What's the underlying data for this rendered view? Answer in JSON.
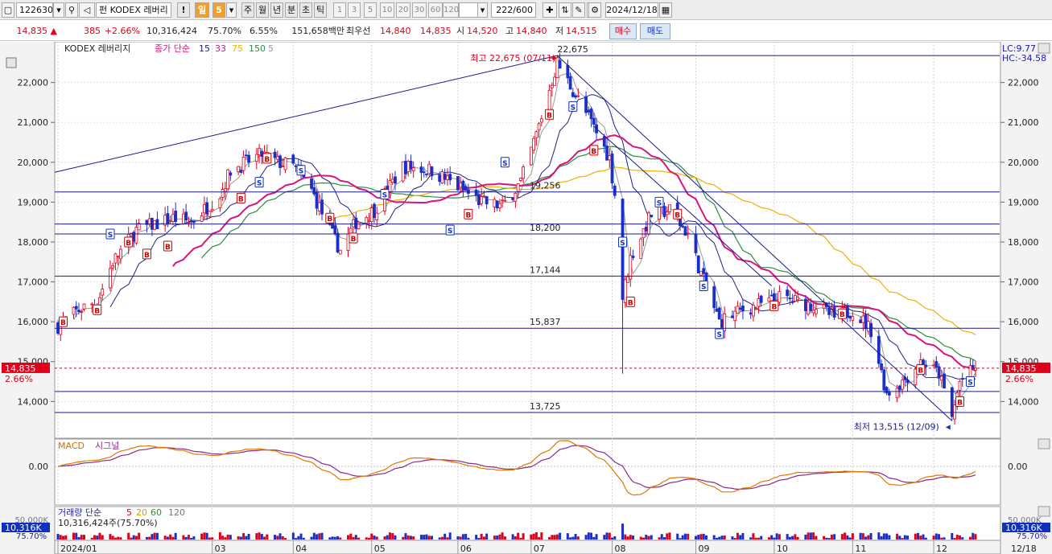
{
  "toolbar": {
    "code": "122630",
    "fund_prefix": "펀",
    "name": "KODEX 레버리",
    "exclaim": "!",
    "period_active": "일",
    "period_num": "5",
    "periods": [
      "주",
      "월",
      "년",
      "분",
      "초",
      "틱"
    ],
    "min_steps": [
      "1",
      "3",
      "5",
      "10",
      "20",
      "30",
      "60",
      "120"
    ],
    "count_display": "222/600",
    "date": "2024/12/18"
  },
  "pricebar": {
    "price": "14,835",
    "arrow": "▲",
    "change": "385",
    "change_pct": "+2.66%",
    "volume": "10,316,424",
    "volume_ratio": "75.70%",
    "turnover": "6.55%",
    "trade_value": "151,658백만",
    "best_label": "최우선",
    "best_ask": "14,840",
    "best_bid": "14,835",
    "open_label": "시",
    "open": "14,520",
    "high_label": "고",
    "high": "14,840",
    "low_label": "저",
    "low": "14,515",
    "buy_button": "매수",
    "sell_button": "매도"
  },
  "price_panel": {
    "title": "KODEX 레버리지",
    "ma_prefix": "종가 단순",
    "ma_legend": [
      "15",
      "33",
      "75",
      "150",
      "5"
    ],
    "lc": "LC:9.77",
    "hc": "HC:-34.58",
    "current_price": "14,835",
    "current_pct": "2.66%",
    "high_note": "최고 22,675 (07/11)",
    "low_note": "최저 13,515 (12/09)",
    "y_ticks": [
      "22,000",
      "21,000",
      "20,000",
      "19,000",
      "18,000",
      "17,000",
      "16,000",
      "15,000",
      "14,000"
    ]
  },
  "macd_panel": {
    "label": "MACD",
    "signal_label": "시그널",
    "zero_label": "0.00"
  },
  "volume_panel": {
    "label": "거래량 단순",
    "ma_legend": [
      "5",
      "20",
      "60",
      "120"
    ],
    "info": "10,316,424주(75.70%)",
    "right_tick": "50,000K",
    "badge": "10,316K",
    "badge_pct": "75.70%"
  },
  "x_axis": {
    "labels": [
      "2024/01",
      "03",
      "04",
      "05",
      "06",
      "07",
      "08",
      "09",
      "10",
      "11",
      "12"
    ],
    "right_label": "12/18"
  },
  "colors": {
    "up": "#e0001a",
    "down": "#1c2fc9",
    "ma15": "#222288",
    "ma33": "#d8147e",
    "ma75": "#f0b000",
    "ma150": "#2e8b3e",
    "ma5": "#999999",
    "hline": "#1a1a8c"
  },
  "chart_data": {
    "type": "candlestick",
    "horizontal_levels": [
      22675,
      19256,
      18200,
      17144,
      15837,
      13725
    ],
    "ohlc_knots": [
      {
        "date": "2024-01-02",
        "close": 15900
      },
      {
        "date": "2024-01-10",
        "close": 16300
      },
      {
        "date": "2024-01-17",
        "close": 16500
      },
      {
        "date": "2024-01-23",
        "close": 17500
      },
      {
        "date": "2024-02-01",
        "close": 18300
      },
      {
        "date": "2024-02-15",
        "close": 18600
      },
      {
        "date": "2024-02-22",
        "close": 18500
      },
      {
        "date": "2024-03-04",
        "close": 19200
      },
      {
        "date": "2024-03-08",
        "close": 19800
      },
      {
        "date": "2024-03-20",
        "close": 20200
      },
      {
        "date": "2024-03-26",
        "close": 20000
      },
      {
        "date": "2024-04-01",
        "close": 19900
      },
      {
        "date": "2024-04-08",
        "close": 19300
      },
      {
        "date": "2024-04-15",
        "close": 18300
      },
      {
        "date": "2024-04-19",
        "close": 17800
      },
      {
        "date": "2024-04-25",
        "close": 18500
      },
      {
        "date": "2024-05-02",
        "close": 18800
      },
      {
        "date": "2024-05-13",
        "close": 19900
      },
      {
        "date": "2024-05-24",
        "close": 19800
      },
      {
        "date": "2024-06-05",
        "close": 19300
      },
      {
        "date": "2024-06-12",
        "close": 19000
      },
      {
        "date": "2024-06-20",
        "close": 18900
      },
      {
        "date": "2024-06-27",
        "close": 19500
      },
      {
        "date": "2024-07-03",
        "close": 20700
      },
      {
        "date": "2024-07-11",
        "close": 22500
      },
      {
        "date": "2024-07-17",
        "close": 21800
      },
      {
        "date": "2024-07-24",
        "close": 21000
      },
      {
        "date": "2024-07-31",
        "close": 20100
      },
      {
        "date": "2024-08-02",
        "close": 19200
      },
      {
        "date": "2024-08-05",
        "close": 16600
      },
      {
        "date": "2024-08-08",
        "close": 17600
      },
      {
        "date": "2024-08-16",
        "close": 18700
      },
      {
        "date": "2024-08-23",
        "close": 18800
      },
      {
        "date": "2024-08-30",
        "close": 18200
      },
      {
        "date": "2024-09-04",
        "close": 17200
      },
      {
        "date": "2024-09-11",
        "close": 16000
      },
      {
        "date": "2024-09-20",
        "close": 16300
      },
      {
        "date": "2024-09-30",
        "close": 16500
      },
      {
        "date": "2024-10-04",
        "close": 16600
      },
      {
        "date": "2024-10-11",
        "close": 16500
      },
      {
        "date": "2024-10-18",
        "close": 16400
      },
      {
        "date": "2024-10-25",
        "close": 16100
      },
      {
        "date": "2024-11-01",
        "close": 16300
      },
      {
        "date": "2024-11-08",
        "close": 15800
      },
      {
        "date": "2024-11-14",
        "close": 14200
      },
      {
        "date": "2024-11-20",
        "close": 14500
      },
      {
        "date": "2024-11-27",
        "close": 15000
      },
      {
        "date": "2024-12-04",
        "close": 14700
      },
      {
        "date": "2024-12-09",
        "close": 13600
      },
      {
        "date": "2024-12-12",
        "close": 14500
      },
      {
        "date": "2024-12-18",
        "close": 14835
      }
    ],
    "extremes": {
      "high": {
        "date": "2024-07-11",
        "value": 22675
      },
      "low": {
        "date": "2024-12-09",
        "value": 13515
      }
    },
    "y_range": [
      13200,
      22900
    ]
  }
}
